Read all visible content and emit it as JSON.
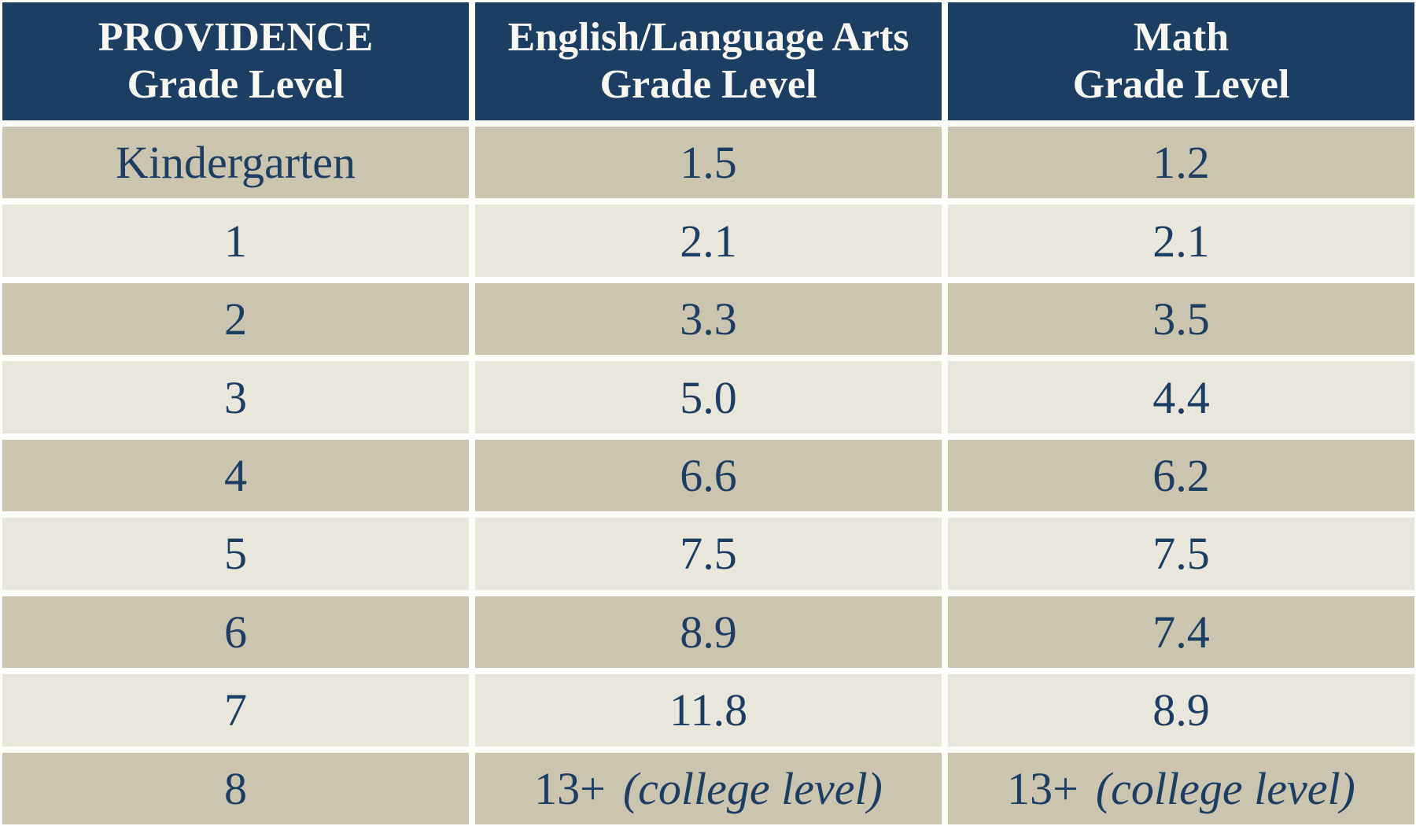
{
  "table": {
    "header": {
      "col1": [
        "PROVIDENCE",
        "Grade Level"
      ],
      "col2": [
        "English/Language Arts",
        "Grade Level"
      ],
      "col3": [
        "Math",
        "Grade Level"
      ]
    },
    "rows": [
      {
        "grade": "Kindergarten",
        "ela": "1.5",
        "math": "1.2"
      },
      {
        "grade": "1",
        "ela": "2.1",
        "math": "2.1"
      },
      {
        "grade": "2",
        "ela": "3.3",
        "math": "3.5"
      },
      {
        "grade": "3",
        "ela": "5.0",
        "math": "4.4"
      },
      {
        "grade": "4",
        "ela": "6.6",
        "math": "6.2"
      },
      {
        "grade": "5",
        "ela": "7.5",
        "math": "7.5"
      },
      {
        "grade": "6",
        "ela": "8.9",
        "math": "7.4"
      },
      {
        "grade": "7",
        "ela": "11.8",
        "math": "8.9"
      },
      {
        "grade": "8",
        "ela": "13+",
        "ela_note": "(college level)",
        "math": "13+",
        "math_note": "(college level)"
      }
    ]
  },
  "colors": {
    "header_background": "#1c3e63",
    "header_text": "#f8f7f2",
    "row_dark": "#cbc4ae",
    "row_light": "#e9e7dc",
    "data_text": "#1c3e63",
    "grid_gap": "#fdfdfa"
  },
  "chart_data": {
    "type": "table",
    "title": "Providence grade level vs. tested grade level by subject",
    "columns": [
      "PROVIDENCE Grade Level",
      "English/Language Arts Grade Level",
      "Math Grade Level"
    ],
    "rows": [
      [
        "Kindergarten",
        "1.5",
        "1.2"
      ],
      [
        "1",
        "2.1",
        "2.1"
      ],
      [
        "2",
        "3.3",
        "3.5"
      ],
      [
        "3",
        "5.0",
        "4.4"
      ],
      [
        "4",
        "6.6",
        "6.2"
      ],
      [
        "5",
        "7.5",
        "7.5"
      ],
      [
        "6",
        "8.9",
        "7.4"
      ],
      [
        "7",
        "11.8",
        "8.9"
      ],
      [
        "8",
        "13+ (college level)",
        "13+ (college level)"
      ]
    ],
    "series": [
      {
        "name": "English/Language Arts Grade Level",
        "values": [
          1.5,
          2.1,
          3.3,
          5.0,
          6.6,
          7.5,
          8.9,
          11.8,
          "13+"
        ]
      },
      {
        "name": "Math Grade Level",
        "values": [
          1.2,
          2.1,
          3.5,
          4.4,
          6.2,
          7.5,
          7.4,
          8.9,
          "13+"
        ]
      }
    ],
    "categories": [
      "Kindergarten",
      "1",
      "2",
      "3",
      "4",
      "5",
      "6",
      "7",
      "8"
    ]
  }
}
